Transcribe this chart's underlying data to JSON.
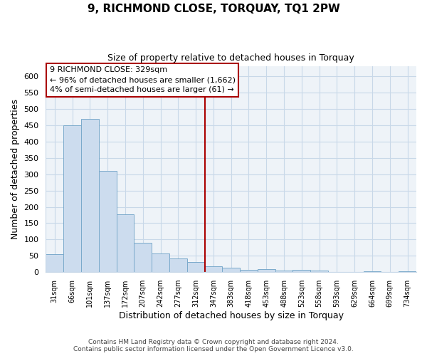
{
  "title": "9, RICHMOND CLOSE, TORQUAY, TQ1 2PW",
  "subtitle": "Size of property relative to detached houses in Torquay",
  "xlabel": "Distribution of detached houses by size in Torquay",
  "ylabel": "Number of detached properties",
  "bin_labels": [
    "31sqm",
    "66sqm",
    "101sqm",
    "137sqm",
    "172sqm",
    "207sqm",
    "242sqm",
    "277sqm",
    "312sqm",
    "347sqm",
    "383sqm",
    "418sqm",
    "453sqm",
    "488sqm",
    "523sqm",
    "558sqm",
    "593sqm",
    "629sqm",
    "664sqm",
    "699sqm",
    "734sqm"
  ],
  "bin_values": [
    55,
    450,
    470,
    310,
    178,
    90,
    58,
    42,
    32,
    18,
    13,
    6,
    10,
    5,
    8,
    5,
    1,
    0,
    3,
    0,
    2
  ],
  "bar_color": "#ccdcee",
  "bar_edge_color": "#7aaacb",
  "reference_line_index": 8,
  "annotation_title": "9 RICHMOND CLOSE: 329sqm",
  "annotation_line1": "← 96% of detached houses are smaller (1,662)",
  "annotation_line2": "4% of semi-detached houses are larger (61) →",
  "annotation_box_color": "#ffffff",
  "annotation_border_color": "#aa0000",
  "reference_line_color": "#aa0000",
  "ylim": [
    0,
    630
  ],
  "yticks": [
    0,
    50,
    100,
    150,
    200,
    250,
    300,
    350,
    400,
    450,
    500,
    550,
    600
  ],
  "footer_line1": "Contains HM Land Registry data © Crown copyright and database right 2024.",
  "footer_line2": "Contains public sector information licensed under the Open Government Licence v3.0.",
  "background_color": "#ffffff",
  "plot_bg_color": "#eef3f8",
  "grid_color": "#c8d8e8"
}
